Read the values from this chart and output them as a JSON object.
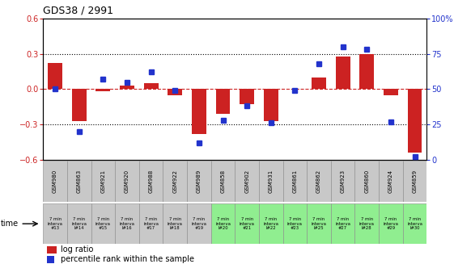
{
  "title": "GDS38 / 2991",
  "samples": [
    "GSM980",
    "GSM863",
    "GSM921",
    "GSM920",
    "GSM988",
    "GSM922",
    "GSM989",
    "GSM858",
    "GSM902",
    "GSM931",
    "GSM861",
    "GSM862",
    "GSM923",
    "GSM860",
    "GSM924",
    "GSM859"
  ],
  "time_labels": [
    "7 min\ninterva\n#13",
    "7 min\ninterva\nl#14",
    "7 min\ninterva\n#15",
    "7 min\ninterva\nl#16",
    "7 min\ninterva\n#17",
    "7 min\ninterva\nl#18",
    "7 min\ninterva\n#19",
    "7 min\ninterva\nl#20",
    "7 min\ninterva\n#21",
    "7 min\ninterva\nl#22",
    "7 min\ninterva\n#23",
    "7 min\ninterva\nl#25",
    "7 min\ninterva\n#27",
    "7 min\ninterva\nl#28",
    "7 min\ninterva\n#29",
    "7 min\ninterva\nl#30"
  ],
  "log_ratio": [
    0.22,
    -0.27,
    -0.02,
    0.03,
    0.05,
    -0.05,
    -0.38,
    -0.21,
    -0.13,
    -0.27,
    0.0,
    0.1,
    0.28,
    0.3,
    -0.05,
    -0.54
  ],
  "percentile": [
    50,
    20,
    57,
    55,
    62,
    49,
    12,
    28,
    38,
    26,
    49,
    68,
    80,
    78,
    27,
    2
  ],
  "ylim_left": [
    -0.6,
    0.6
  ],
  "ylim_right": [
    0,
    100
  ],
  "bar_color": "#cc2222",
  "square_color": "#2233cc",
  "dotted_lines_black": [
    -0.3,
    0.3
  ],
  "table_bg_colors": [
    "#c8c8c8",
    "#c8c8c8",
    "#c8c8c8",
    "#c8c8c8",
    "#c8c8c8",
    "#c8c8c8",
    "#c8c8c8",
    "#90ee90",
    "#90ee90",
    "#90ee90",
    "#90ee90",
    "#90ee90",
    "#90ee90",
    "#90ee90",
    "#90ee90",
    "#90ee90"
  ],
  "legend_log_ratio": "log ratio",
  "legend_percentile": "percentile rank within the sample"
}
